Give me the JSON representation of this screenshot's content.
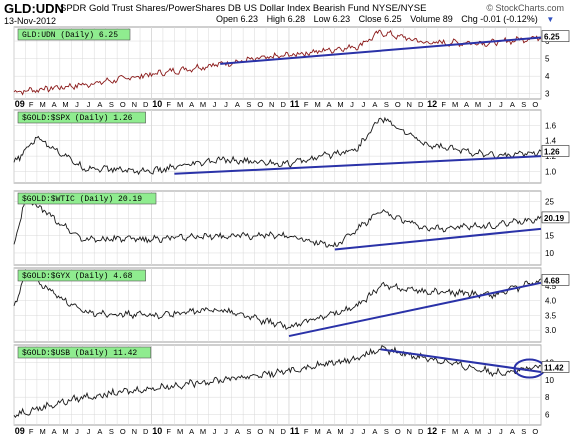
{
  "header": {
    "symbol": "GLD:UDN",
    "name": "SPDR Gold Trust Shares/PowerShares DB US Dollar Index Bearish Fund",
    "exchange": "NYSE/NYSE",
    "logo": "© StockCharts.com",
    "date": "13-Nov-2012",
    "open": "Open 6.23",
    "high": "High 6.28",
    "low": "Low 6.23",
    "close": "Close 6.25",
    "volume": "Volume 89",
    "change": "Chg -0.01 (-0.12%)",
    "change_icon": "triangle-down-icon"
  },
  "colors": {
    "price_line": "#8b1a1a",
    "series_line": "#1a1a1a",
    "trendline": "#2a32a8",
    "label_box": "#8fec8f",
    "grid": "#d8d8d8",
    "ellipse": "#2a32a8"
  },
  "chart_data": [
    {
      "type": "line",
      "legend": "GLD:UDN (Daily) 6.25",
      "last_value": "6.25",
      "yticks": [
        "3",
        "4",
        "5",
        "6"
      ],
      "ylim": [
        2.7,
        6.8
      ],
      "x": [
        "2009-01",
        "2009-07",
        "2010-01",
        "2010-07",
        "2011-01",
        "2011-07",
        "2011-09",
        "2012-01",
        "2012-07",
        "2012-11"
      ],
      "y": [
        3.1,
        3.5,
        4.1,
        4.7,
        5.2,
        5.7,
        6.5,
        5.9,
        5.9,
        6.25
      ],
      "trendline": {
        "x": [
          "2010-07",
          "2012-11"
        ],
        "y": [
          4.7,
          6.2
        ]
      }
    },
    {
      "type": "line",
      "legend": "$GOLD:$SPX (Daily) 1.26",
      "last_value": "1.26",
      "yticks": [
        "1.0",
        "1.2",
        "1.4",
        "1.6"
      ],
      "ylim": [
        0.85,
        1.8
      ],
      "x": [
        "2009-01",
        "2009-03",
        "2009-07",
        "2010-01",
        "2010-07",
        "2011-01",
        "2011-07",
        "2011-09",
        "2012-01",
        "2012-07",
        "2012-11"
      ],
      "y": [
        1.1,
        1.45,
        1.05,
        1.0,
        1.15,
        1.1,
        1.3,
        1.7,
        1.35,
        1.2,
        1.26
      ],
      "trendline": {
        "x": [
          "2010-03",
          "2012-11"
        ],
        "y": [
          0.97,
          1.2
        ]
      }
    },
    {
      "type": "line",
      "legend": "$GOLD:$WTIC (Daily) 20.19",
      "last_value": "20.19",
      "yticks": [
        "10",
        "15",
        "20",
        "25"
      ],
      "ylim": [
        6.5,
        28
      ],
      "x": [
        "2009-01",
        "2009-02",
        "2009-07",
        "2010-01",
        "2010-07",
        "2011-01",
        "2011-05",
        "2011-09",
        "2012-01",
        "2012-07",
        "2012-11"
      ],
      "y": [
        12,
        26,
        14,
        14,
        15,
        15,
        12,
        22,
        17,
        18,
        20.19
      ],
      "trendline": {
        "x": [
          "2011-05",
          "2012-11"
        ],
        "y": [
          11,
          17
        ]
      }
    },
    {
      "type": "line",
      "legend": "$GOLD:$GYX (Daily) 4.68",
      "last_value": "4.68",
      "yticks": [
        "3.0",
        "3.5",
        "4.0",
        "4.5"
      ],
      "ylim": [
        2.6,
        5.1
      ],
      "x": [
        "2009-01",
        "2009-02",
        "2009-07",
        "2010-01",
        "2010-07",
        "2011-01",
        "2011-07",
        "2011-09",
        "2012-01",
        "2012-07",
        "2012-11"
      ],
      "y": [
        3.8,
        4.9,
        3.6,
        3.5,
        3.7,
        3.1,
        3.8,
        4.5,
        4.3,
        4.2,
        4.68
      ],
      "trendline": {
        "x": [
          "2011-01",
          "2012-11"
        ],
        "y": [
          2.8,
          4.6
        ]
      }
    },
    {
      "type": "line",
      "legend": "$GOLD:$USB (Daily) 11.42",
      "last_value": "11.42",
      "yticks": [
        "6",
        "8",
        "10",
        "12"
      ],
      "ylim": [
        4.8,
        14
      ],
      "x": [
        "2009-01",
        "2009-07",
        "2010-01",
        "2010-07",
        "2011-01",
        "2011-07",
        "2011-09",
        "2012-01",
        "2012-07",
        "2012-11"
      ],
      "y": [
        6,
        8,
        9,
        10,
        11,
        12.5,
        13.5,
        12.5,
        10.8,
        11.42
      ],
      "trendline": {
        "x": [
          "2011-09",
          "2012-11"
        ],
        "y": [
          13.5,
          10.9
        ]
      },
      "highlight": "ellipse at 2012-10"
    }
  ],
  "xaxis": {
    "years": [
      {
        "label": "09",
        "month_index": 0
      },
      {
        "label": "10",
        "month_index": 12
      },
      {
        "label": "11",
        "month_index": 24
      },
      {
        "label": "12",
        "month_index": 36
      }
    ],
    "month_letters": [
      "F",
      "M",
      "A",
      "M",
      "J",
      "J",
      "A",
      "S",
      "O",
      "N",
      "D"
    ],
    "start": "2009-01",
    "end": "2012-11"
  }
}
